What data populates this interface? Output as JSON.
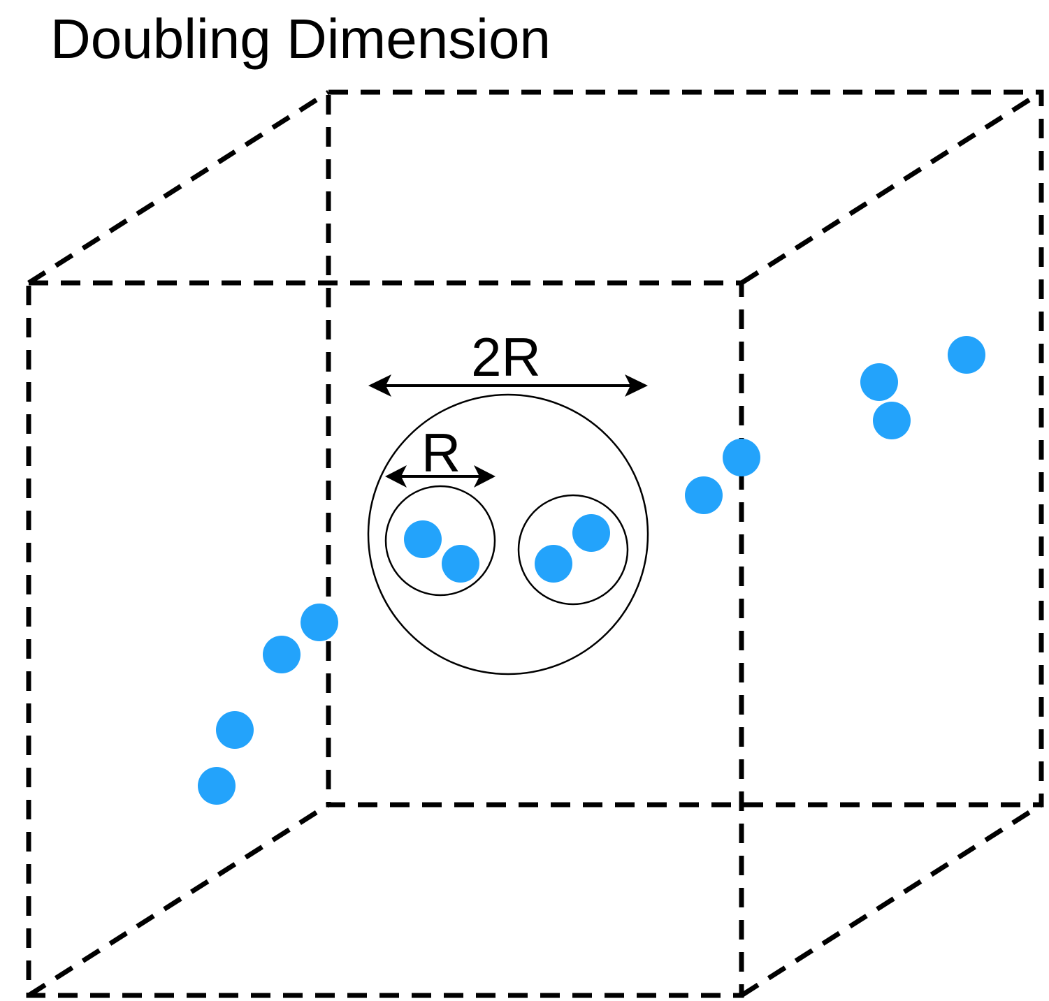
{
  "title": "Doubling Dimension",
  "labels": {
    "outer_ball_diameter": "2R",
    "inner_ball_radius": "R"
  },
  "colors": {
    "point": "#23a3fb",
    "edge": "#000000",
    "background": "#ffffff"
  }
}
